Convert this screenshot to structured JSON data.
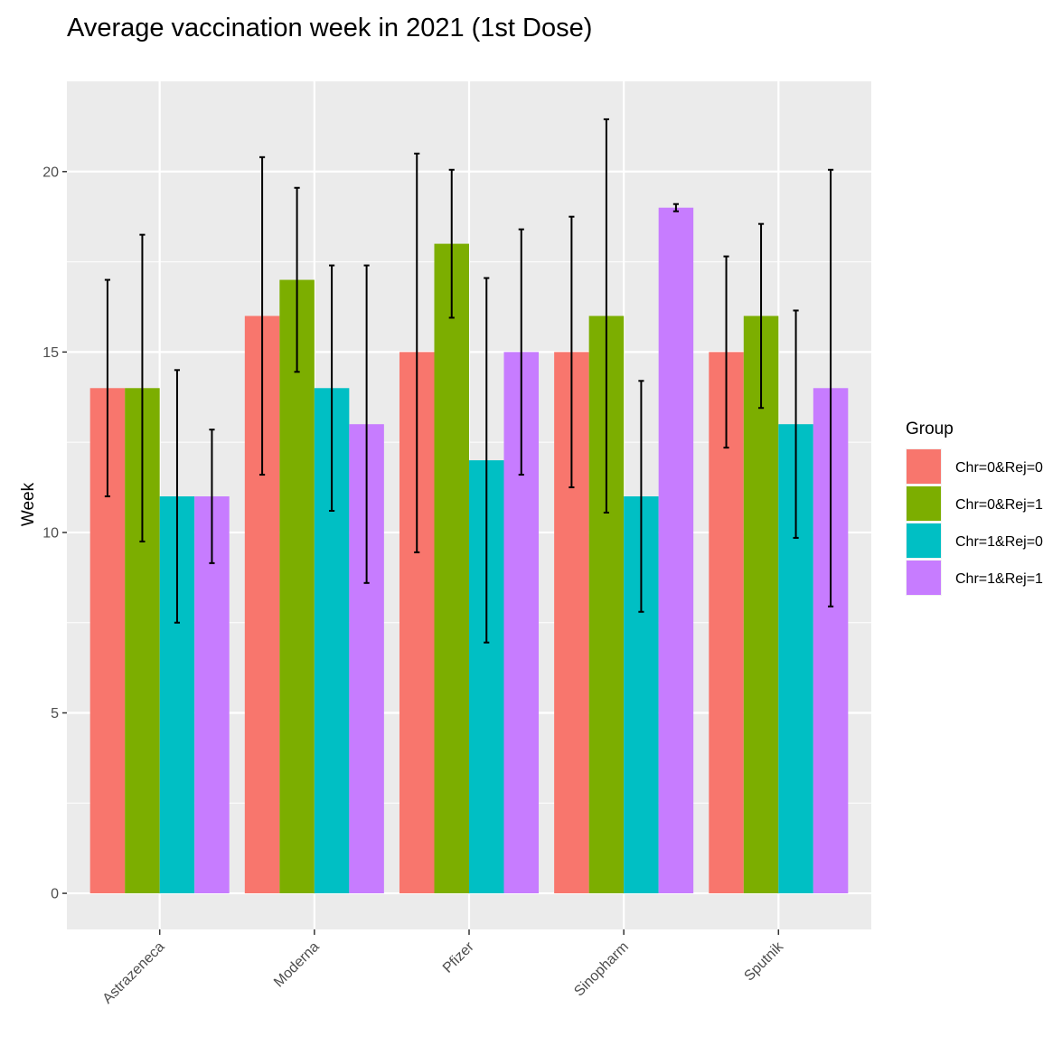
{
  "chart_data": {
    "type": "bar",
    "title": "Average vaccination week in 2021 (1st Dose)",
    "xlabel": "",
    "ylabel": "Week",
    "ylim": [
      -1,
      22.5
    ],
    "yticks": [
      "0",
      "5",
      "10",
      "15",
      "20"
    ],
    "grid": true,
    "legend": {
      "title": "Group",
      "position": "right"
    },
    "categories": [
      "Astrazeneca",
      "Moderna",
      "Pfizer",
      "Sinopharm",
      "Sputnik"
    ],
    "series": [
      {
        "name": "Chr=0&Rej=0",
        "color": "#F8766D",
        "values": [
          14,
          16,
          15,
          15,
          15
        ],
        "err_low": [
          11.0,
          11.6,
          9.45,
          11.25,
          12.35
        ],
        "err_high": [
          17.0,
          20.4,
          20.5,
          18.75,
          17.65
        ]
      },
      {
        "name": "Chr=0&Rej=1",
        "color": "#7CAE00",
        "values": [
          14,
          17,
          18,
          16,
          16
        ],
        "err_low": [
          9.75,
          14.45,
          15.95,
          10.55,
          13.45
        ],
        "err_high": [
          18.25,
          19.55,
          20.05,
          21.45,
          18.55
        ]
      },
      {
        "name": "Chr=1&Rej=0",
        "color": "#00BFC4",
        "values": [
          11,
          14,
          12,
          11,
          13
        ],
        "err_low": [
          7.5,
          10.6,
          6.95,
          7.8,
          9.85
        ],
        "err_high": [
          14.5,
          17.4,
          17.05,
          14.2,
          16.15
        ]
      },
      {
        "name": "Chr=1&Rej=1",
        "color": "#C77CFF",
        "values": [
          11,
          13,
          15,
          19,
          14
        ],
        "err_low": [
          9.15,
          8.6,
          11.6,
          18.9,
          7.95
        ],
        "err_high": [
          12.85,
          17.4,
          18.4,
          19.1,
          20.05
        ]
      }
    ]
  }
}
